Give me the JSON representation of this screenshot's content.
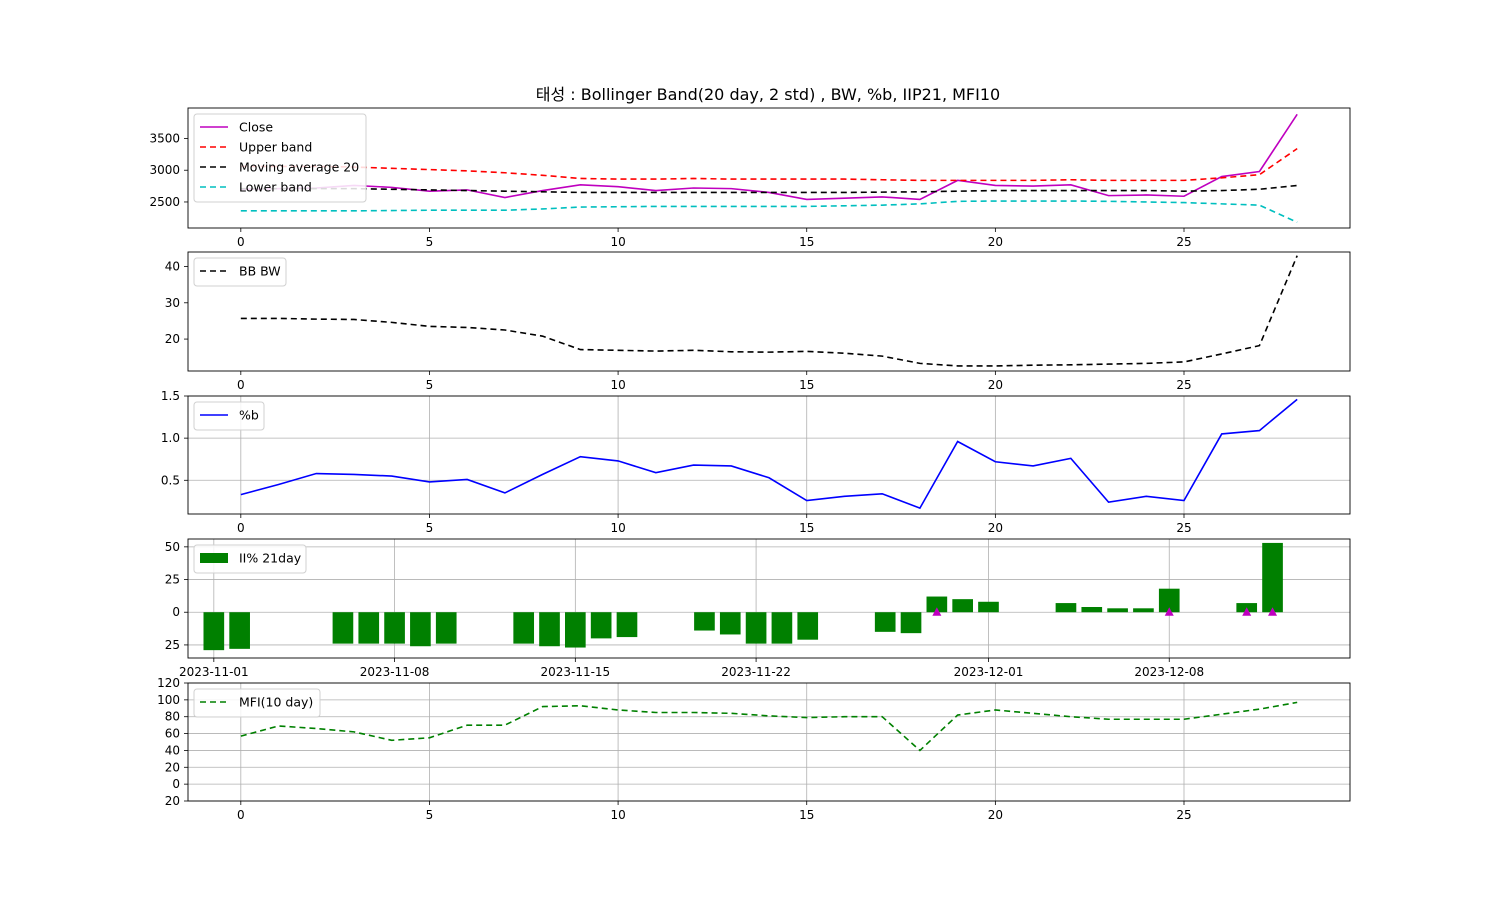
{
  "title": "태성 : Bollinger Band(20 day, 2 std) , BW, %b, IIP21, MFI10",
  "chart_data": [
    {
      "id": "bb",
      "type": "line",
      "xlim": [
        -1.4,
        29.4
      ],
      "ylim": [
        2090,
        3980
      ],
      "xticks": [
        0,
        5,
        10,
        15,
        20,
        25
      ],
      "yticks": [
        2500,
        3000,
        3500
      ],
      "grid": false,
      "legend": "upper-left",
      "series": [
        {
          "name": "Close",
          "color": "#bf00bf",
          "dash": "solid",
          "values": [
            2700,
            2710,
            2720,
            2760,
            2730,
            2670,
            2690,
            2570,
            2680,
            2770,
            2740,
            2680,
            2720,
            2710,
            2650,
            2540,
            2560,
            2580,
            2540,
            2840,
            2760,
            2750,
            2770,
            2600,
            2610,
            2590,
            2900,
            2980,
            3880
          ]
        },
        {
          "name": "Upper band",
          "color": "#ff0000",
          "dash": "dashed",
          "values": [
            3060,
            3060,
            3060,
            3050,
            3030,
            3010,
            2990,
            2960,
            2920,
            2870,
            2860,
            2860,
            2870,
            2860,
            2860,
            2860,
            2860,
            2850,
            2840,
            2840,
            2840,
            2840,
            2850,
            2840,
            2840,
            2840,
            2880,
            2930,
            3340
          ]
        },
        {
          "name": "Moving average 20",
          "color": "#000000",
          "dash": "dashed",
          "values": [
            2710,
            2710,
            2710,
            2710,
            2700,
            2690,
            2680,
            2670,
            2660,
            2650,
            2650,
            2650,
            2650,
            2650,
            2650,
            2650,
            2650,
            2655,
            2660,
            2670,
            2680,
            2680,
            2680,
            2680,
            2680,
            2670,
            2680,
            2700,
            2760
          ]
        },
        {
          "name": "Lower band",
          "color": "#00bfbf",
          "dash": "dashed",
          "values": [
            2360,
            2360,
            2360,
            2360,
            2365,
            2370,
            2370,
            2370,
            2390,
            2420,
            2425,
            2430,
            2430,
            2430,
            2430,
            2430,
            2440,
            2450,
            2470,
            2510,
            2515,
            2515,
            2515,
            2510,
            2500,
            2490,
            2470,
            2450,
            2180
          ]
        }
      ]
    },
    {
      "id": "bw",
      "type": "line",
      "xlim": [
        -1.4,
        29.4
      ],
      "ylim": [
        11.2,
        44.0
      ],
      "xticks": [
        0,
        5,
        10,
        15,
        20,
        25
      ],
      "yticks": [
        20,
        30,
        40
      ],
      "grid": false,
      "legend": "upper-left",
      "series": [
        {
          "name": "BB BW",
          "color": "#000000",
          "dash": "dashed",
          "values": [
            25.7,
            25.7,
            25.5,
            25.4,
            24.6,
            23.5,
            23.2,
            22.5,
            20.8,
            17.1,
            16.9,
            16.7,
            16.9,
            16.5,
            16.4,
            16.6,
            16.1,
            15.3,
            13.3,
            12.6,
            12.6,
            12.8,
            12.9,
            13.1,
            13.3,
            13.7,
            15.9,
            18.2,
            43.0
          ]
        }
      ]
    },
    {
      "id": "pctb",
      "type": "line",
      "xlim": [
        -1.4,
        29.4
      ],
      "ylim": [
        0.1,
        1.5
      ],
      "xticks": [
        0,
        5,
        10,
        15,
        20,
        25
      ],
      "yticks": [
        0.5,
        1.0,
        1.5
      ],
      "ytick_labels": [
        "0.5",
        "1.0",
        "1.5"
      ],
      "grid": true,
      "legend": "upper-left",
      "series": [
        {
          "name": "%b",
          "color": "#0000ff",
          "dash": "solid",
          "values": [
            0.33,
            0.45,
            0.58,
            0.57,
            0.55,
            0.48,
            0.51,
            0.35,
            0.57,
            0.78,
            0.73,
            0.59,
            0.68,
            0.67,
            0.53,
            0.26,
            0.31,
            0.34,
            0.17,
            0.96,
            0.72,
            0.67,
            0.76,
            0.24,
            0.31,
            0.26,
            1.05,
            1.09,
            1.46
          ]
        }
      ]
    },
    {
      "id": "iip",
      "type": "bar",
      "x_is_date": true,
      "xlim": [
        "2023-10-31",
        "2023-12-15"
      ],
      "ylim": [
        -35,
        56
      ],
      "xticks": [
        "2023-11-01",
        "2023-11-08",
        "2023-11-15",
        "2023-11-22",
        "2023-12-01",
        "2023-12-08"
      ],
      "yticks": [
        -25,
        0,
        25,
        50
      ],
      "ytick_labels": [
        "\u001125",
        "0",
        "25",
        "50"
      ],
      "grid": true,
      "legend": "upper-left",
      "series": [
        {
          "name": "II% 21day",
          "color": "#008000",
          "points": [
            [
              "2023-11-01",
              -29
            ],
            [
              "2023-11-02",
              -28
            ],
            [
              "2023-11-06",
              -24
            ],
            [
              "2023-11-07",
              -24
            ],
            [
              "2023-11-08",
              -24
            ],
            [
              "2023-11-09",
              -26
            ],
            [
              "2023-11-10",
              -24
            ],
            [
              "2023-11-13",
              -24
            ],
            [
              "2023-11-14",
              -26
            ],
            [
              "2023-11-15",
              -27
            ],
            [
              "2023-11-16",
              -20
            ],
            [
              "2023-11-17",
              -19
            ],
            [
              "2023-11-20",
              -14
            ],
            [
              "2023-11-21",
              -17
            ],
            [
              "2023-11-22",
              -24
            ],
            [
              "2023-11-23",
              -24
            ],
            [
              "2023-11-24",
              -21
            ],
            [
              "2023-11-27",
              -15
            ],
            [
              "2023-11-28",
              -16
            ],
            [
              "2023-11-29",
              12
            ],
            [
              "2023-11-30",
              10
            ],
            [
              "2023-12-01",
              8
            ],
            [
              "2023-12-04",
              7
            ],
            [
              "2023-12-05",
              4
            ],
            [
              "2023-12-06",
              3
            ],
            [
              "2023-12-07",
              3
            ],
            [
              "2023-12-08",
              18
            ],
            [
              "2023-12-11",
              7
            ],
            [
              "2023-12-12",
              53
            ]
          ]
        },
        {
          "name": "markers",
          "color": "#bf00bf",
          "points": [
            [
              "2023-11-29",
              0
            ],
            [
              "2023-12-08",
              0
            ],
            [
              "2023-12-11",
              0
            ],
            [
              "2023-12-12",
              0
            ]
          ]
        }
      ]
    },
    {
      "id": "mfi",
      "type": "line",
      "xlim": [
        -1.4,
        29.4
      ],
      "ylim": [
        -20,
        120
      ],
      "xticks": [
        0,
        5,
        10,
        15,
        20,
        25
      ],
      "yticks": [
        -20,
        0,
        20,
        40,
        60,
        80,
        100,
        120
      ],
      "ytick_labels": [
        "\u001120",
        "0",
        "20",
        "40",
        "60",
        "80",
        "100",
        "120"
      ],
      "grid": true,
      "legend": "upper-left",
      "series": [
        {
          "name": "MFI(10 day)",
          "color": "#008000",
          "dash": "dashed",
          "values": [
            57,
            69,
            66,
            62,
            52,
            55,
            70,
            70,
            92,
            93,
            88,
            85,
            85,
            84,
            81,
            79,
            80,
            80,
            40,
            82,
            88,
            84,
            80,
            77,
            77,
            77,
            83,
            89,
            97
          ]
        }
      ]
    }
  ]
}
